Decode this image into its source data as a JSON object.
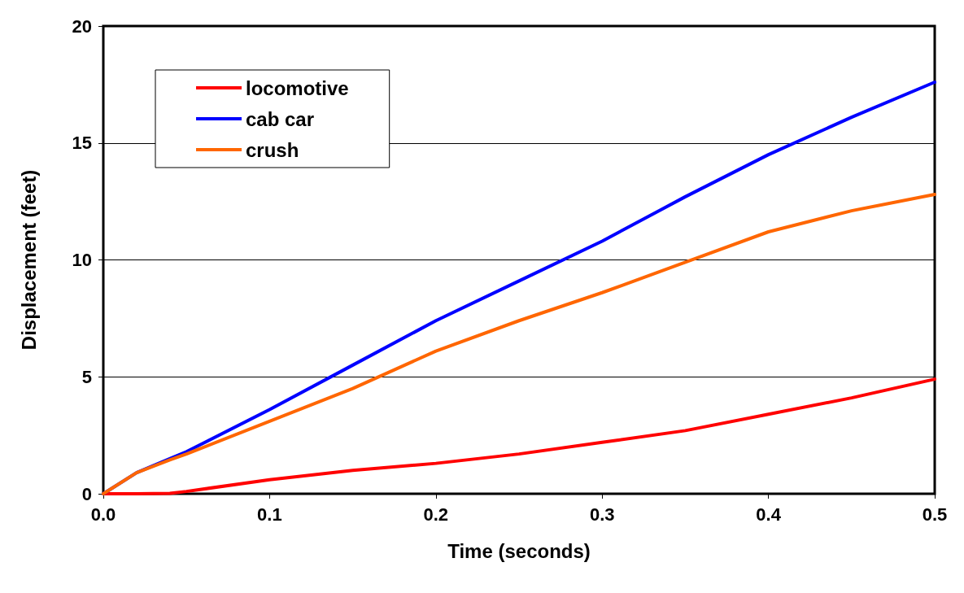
{
  "chart_data": {
    "type": "line",
    "xlabel": "Time (seconds)",
    "ylabel": "Displacement (feet)",
    "xlim": [
      0,
      0.5
    ],
    "ylim": [
      0,
      20
    ],
    "xticks": [
      {
        "value": 0,
        "label": "0.0"
      },
      0.1,
      0.2,
      0.3,
      0.4,
      0.5
    ],
    "yticks": [
      0,
      5,
      10,
      15,
      20
    ],
    "grid": "y",
    "legend": "top left",
    "marker": "none",
    "line_style": "solid",
    "x": [
      0,
      0.02,
      0.04,
      0.05,
      0.1,
      0.15,
      0.2,
      0.25,
      0.3,
      0.35,
      0.4,
      0.45,
      0.5
    ],
    "series": [
      {
        "name": "locomotive",
        "color": "#ff0000",
        "values": [
          0,
          0,
          0.02,
          0.1,
          0.6,
          1.0,
          1.3,
          1.7,
          2.2,
          2.7,
          3.4,
          4.1,
          4.9
        ]
      },
      {
        "name": "cab car",
        "color": "#0000ff",
        "values": [
          0,
          0.9,
          1.5,
          1.8,
          3.6,
          5.5,
          7.4,
          9.1,
          10.8,
          12.7,
          14.5,
          16.1,
          17.6
        ]
      },
      {
        "name": "crush",
        "color": "#ff6600",
        "values": [
          0,
          0.9,
          1.45,
          1.7,
          3.1,
          4.5,
          6.1,
          7.4,
          8.6,
          9.9,
          11.2,
          12.1,
          12.8
        ]
      }
    ]
  }
}
